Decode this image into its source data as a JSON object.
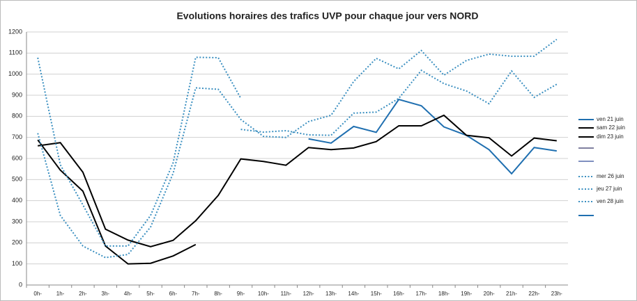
{
  "chart_data": {
    "type": "line",
    "title": "Evolutions horaires des trafics UVP pour chaque jour vers NORD",
    "categories": [
      "0h-",
      "1h-",
      "2h-",
      "3h-",
      "4h-",
      "5h-",
      "6h-",
      "7h-",
      "8h-",
      "9h-",
      "10h-",
      "11h-",
      "12h-",
      "13h-",
      "14h-",
      "15h-",
      "16h-",
      "17h-",
      "18h-",
      "19h-",
      "20h-",
      "21h-",
      "22h-",
      "23h-"
    ],
    "ylim": [
      0,
      1200
    ],
    "yticks": [
      0,
      100,
      200,
      300,
      400,
      500,
      600,
      700,
      800,
      900,
      1000,
      1100,
      1200
    ],
    "grid": true,
    "series": [
      {
        "name": "ven 21 juin",
        "color": "#1f6fb0",
        "dash": "solid",
        "values": [
          null,
          null,
          null,
          null,
          null,
          null,
          null,
          null,
          null,
          null,
          null,
          null,
          693,
          673,
          752,
          724,
          880,
          850,
          750,
          710,
          642,
          528,
          652,
          636
        ]
      },
      {
        "name": "sam 22 juin",
        "color": "#000000",
        "dash": "solid",
        "values": [
          660,
          675,
          535,
          265,
          213,
          182,
          212,
          305,
          425,
          598,
          586,
          568,
          652,
          642,
          650,
          680,
          755,
          755,
          805,
          710,
          698,
          612,
          697,
          684
        ]
      },
      {
        "name": "dim 23 juin",
        "color": "#000000",
        "dash": "solid",
        "values": [
          688,
          545,
          445,
          185,
          100,
          103,
          138,
          192,
          null,
          null,
          null,
          null,
          null,
          null,
          null,
          null,
          null,
          null,
          null,
          null,
          null,
          null,
          null,
          null
        ]
      },
      {
        "name": "mer 26 juin",
        "color": "#3a8fc0",
        "dash": "dotted",
        "values": [
          1078,
          570,
          380,
          185,
          185,
          330,
          580,
          1080,
          1078,
          885,
          null,
          null,
          null,
          null,
          null,
          null,
          null,
          null,
          null,
          null,
          null,
          null,
          null,
          null
        ]
      },
      {
        "name": "jeu 27 juin",
        "color": "#3a8fc0",
        "dash": "dotted",
        "values": [
          720,
          330,
          185,
          130,
          145,
          275,
          530,
          935,
          928,
          785,
          705,
          700,
          775,
          805,
          965,
          1075,
          1025,
          1112,
          995,
          1065,
          1095,
          1085,
          1085,
          1165
        ]
      },
      {
        "name": "ven 28 juin",
        "color": "#3a8fc0",
        "dash": "dotted",
        "values": [
          null,
          null,
          null,
          null,
          null,
          null,
          null,
          null,
          null,
          738,
          725,
          732,
          712,
          710,
          815,
          820,
          885,
          1018,
          955,
          920,
          860,
          1015,
          890,
          952
        ]
      }
    ]
  }
}
